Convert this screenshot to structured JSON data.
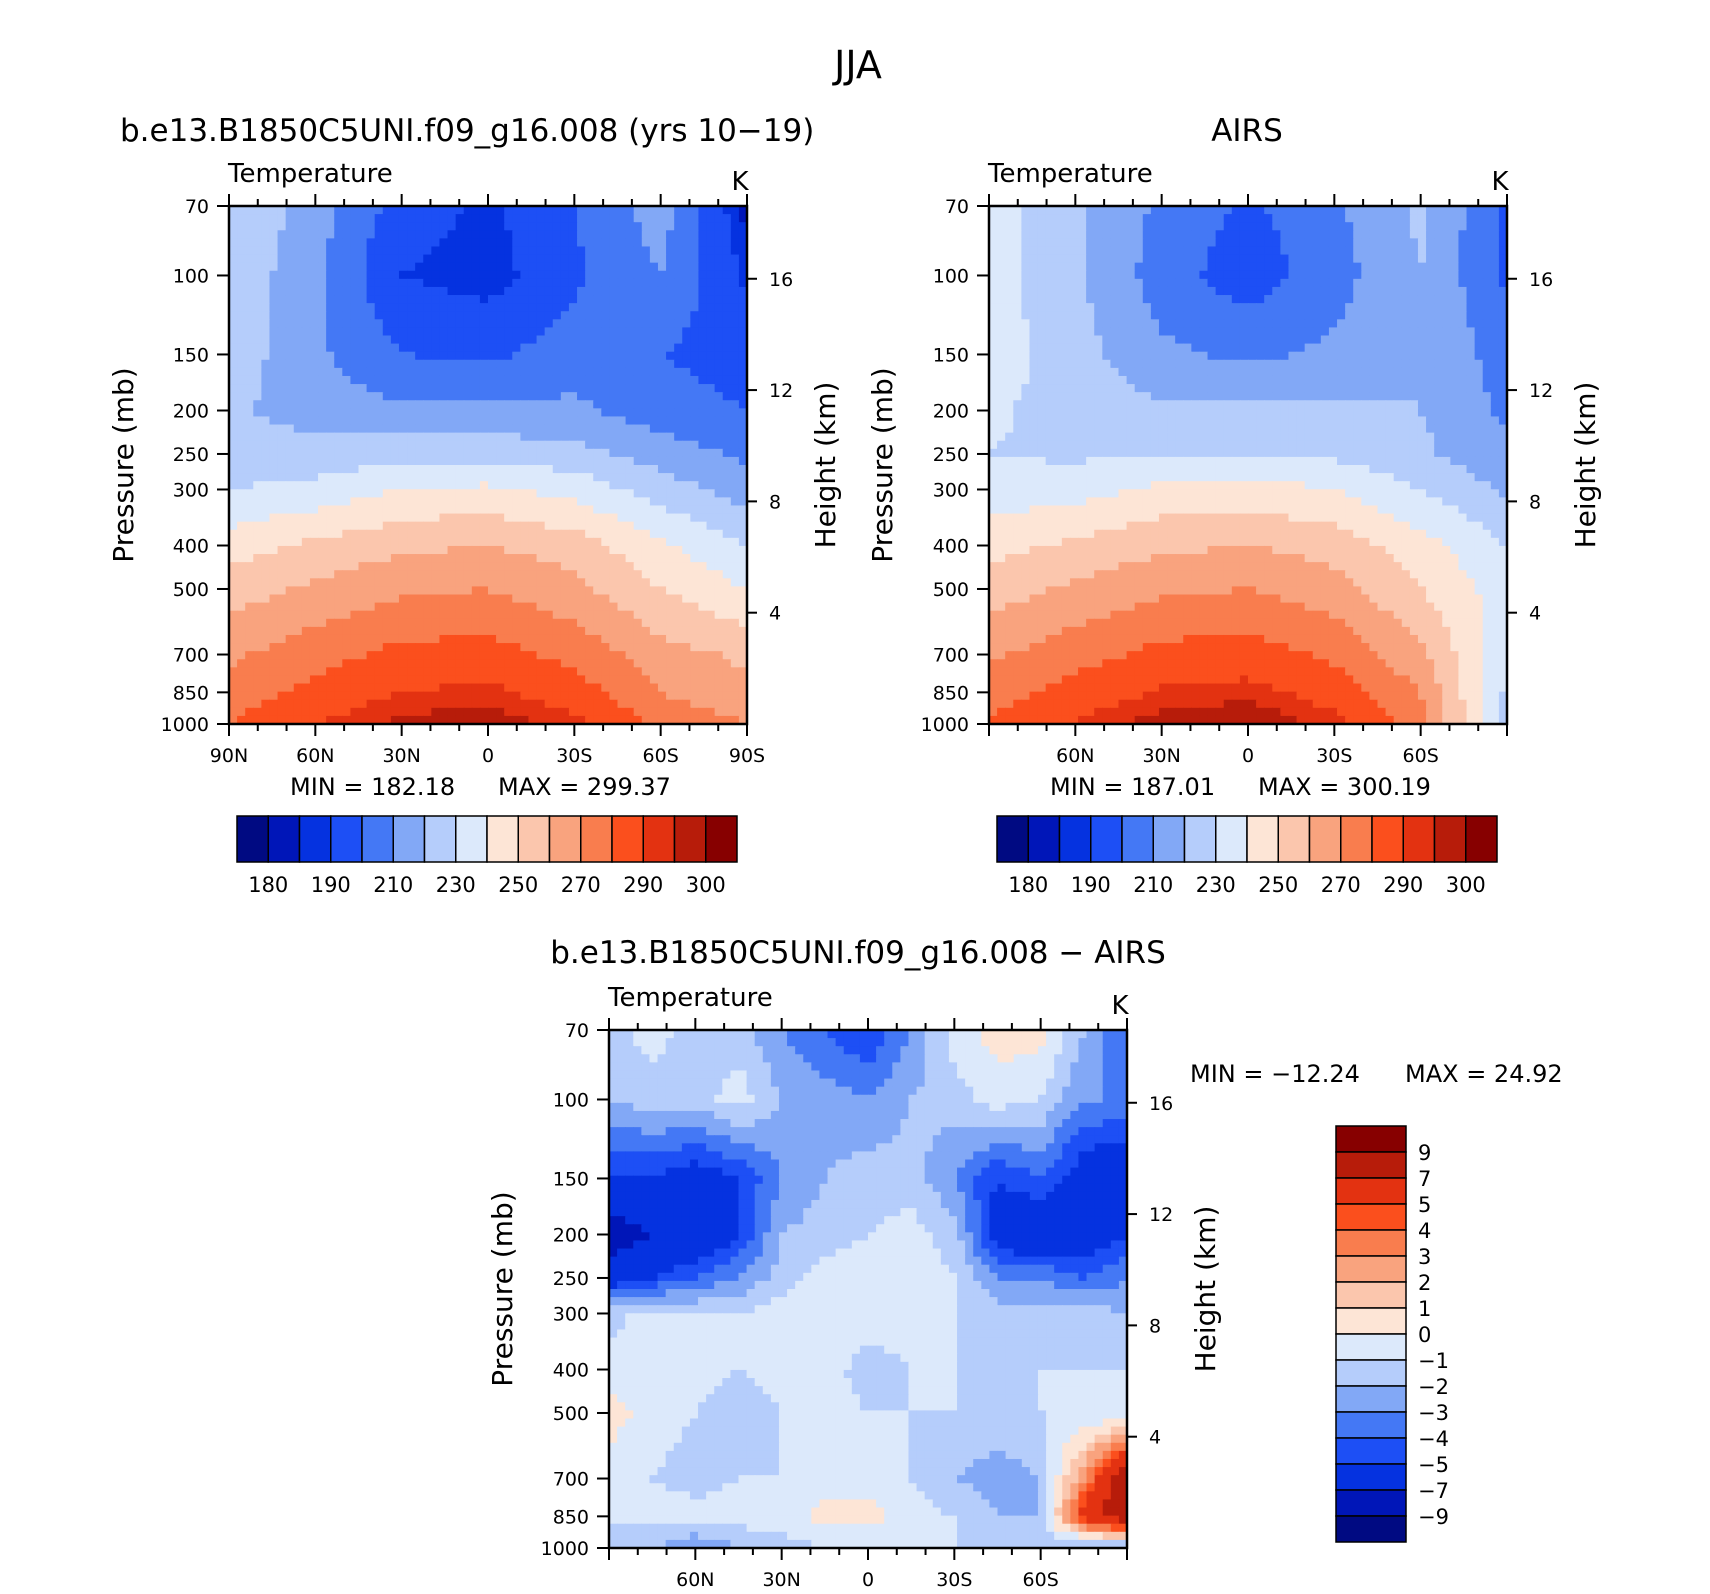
{
  "main_title": "JJA",
  "colors": {
    "abs_levels": [
      180,
      185,
      190,
      200,
      210,
      220,
      230,
      240,
      250,
      260,
      270,
      280,
      290,
      295,
      300
    ],
    "abs_palette": [
      "#000a82",
      "#0016b8",
      "#0532e0",
      "#1d4ff5",
      "#4478f5",
      "#82a8f6",
      "#b5cdfb",
      "#dce9fb",
      "#fde5d6",
      "#fbc6ad",
      "#f9a37e",
      "#f97d4e",
      "#fb4f1d",
      "#e33211",
      "#b71c0a",
      "#870000"
    ],
    "diff_palette": [
      "#000a82",
      "#0016b8",
      "#0532e0",
      "#1d4ff5",
      "#4478f5",
      "#82a8f6",
      "#b5cdfb",
      "#dce9fb",
      "#fde5d6",
      "#fbc6ad",
      "#f9a37e",
      "#f97d4e",
      "#fb4f1d",
      "#e33211",
      "#b71c0a",
      "#870000"
    ]
  },
  "chart_data": [
    {
      "type": "heatmap",
      "panel": "model",
      "title": "b.e13.B1850C5UNI.f09_g16.008 (yrs 10−19)",
      "left_string": "Temperature",
      "right_string": "K",
      "xlabel": "",
      "ylabel": "Pressure (mb)",
      "ylabel_right": "Height (km)",
      "x_ticks": [
        "90N",
        "60N",
        "30N",
        "0",
        "30S",
        "60S",
        "90S"
      ],
      "y_ticks": [
        "70",
        "100",
        "150",
        "200",
        "250",
        "300",
        "400",
        "500",
        "700",
        "850",
        "1000"
      ],
      "y_ticks_right": [
        "16",
        "12",
        "8",
        "4"
      ],
      "x": [
        90,
        60,
        30,
        0,
        -30,
        -60,
        -90
      ],
      "y": [
        70,
        100,
        150,
        200,
        250,
        300,
        400,
        500,
        700,
        850,
        1000
      ],
      "z": [
        [
          230,
          215,
          195,
          188,
          200,
          215,
          182
        ],
        [
          228,
          212,
          190,
          186,
          198,
          210,
          188
        ],
        [
          226,
          212,
          200,
          198,
          205,
          200,
          195
        ],
        [
          222,
          215,
          212,
          212,
          212,
          205,
          200
        ],
        [
          225,
          224,
          226,
          226,
          224,
          215,
          208
        ],
        [
          230,
          233,
          240,
          242,
          236,
          225,
          215
        ],
        [
          245,
          252,
          258,
          260,
          255,
          242,
          230
        ],
        [
          255,
          262,
          268,
          270,
          263,
          250,
          240
        ],
        [
          268,
          276,
          283,
          284,
          277,
          264,
          258
        ],
        [
          275,
          283,
          290,
          292,
          285,
          270,
          262
        ],
        [
          280,
          290,
          297,
          299,
          292,
          278,
          270
        ]
      ],
      "min_label": "MIN = 182.18",
      "max_label": "MAX = 299.37",
      "colorbar_labels": [
        "180",
        "190",
        "210",
        "230",
        "250",
        "270",
        "290",
        "300"
      ]
    },
    {
      "type": "heatmap",
      "panel": "obs",
      "title": "AIRS",
      "left_string": "Temperature",
      "right_string": "K",
      "xlabel": "",
      "ylabel": "Pressure (mb)",
      "ylabel_right": "Height (km)",
      "x_ticks": [
        "60N",
        "30N",
        "0",
        "30S",
        "60S"
      ],
      "y_ticks": [
        "70",
        "100",
        "150",
        "200",
        "250",
        "300",
        "400",
        "500",
        "700",
        "850",
        "1000"
      ],
      "y_ticks_right": [
        "16",
        "12",
        "8",
        "4"
      ],
      "x": [
        90,
        60,
        30,
        0,
        -30,
        -60,
        -90
      ],
      "y": [
        70,
        100,
        150,
        200,
        250,
        300,
        400,
        500,
        700,
        850,
        1000
      ],
      "z": [
        [
          235,
          222,
          208,
          198,
          208,
          222,
          198
        ],
        [
          234,
          222,
          205,
          194,
          206,
          220,
          198
        ],
        [
          236,
          224,
          212,
          208,
          212,
          220,
          205
        ],
        [
          232,
          225,
          222,
          222,
          222,
          220,
          208
        ],
        [
          230,
          228,
          230,
          230,
          228,
          222,
          212
        ],
        [
          234,
          236,
          242,
          244,
          240,
          230,
          218
        ],
        [
          246,
          252,
          258,
          260,
          256,
          244,
          230
        ],
        [
          255,
          262,
          268,
          270,
          264,
          250,
          235
        ],
        [
          268,
          276,
          283,
          285,
          278,
          262,
          232
        ],
        [
          276,
          284,
          291,
          293,
          286,
          270,
          228
        ],
        [
          281,
          291,
          298,
          300,
          293,
          275,
          225
        ]
      ],
      "min_label": "MIN = 187.01",
      "max_label": "MAX = 300.19",
      "colorbar_labels": [
        "180",
        "190",
        "210",
        "230",
        "250",
        "270",
        "290",
        "300"
      ]
    },
    {
      "type": "heatmap",
      "panel": "difference",
      "title": "b.e13.B1850C5UNI.f09_g16.008 − AIRS",
      "left_string": "Temperature",
      "right_string": "K",
      "xlabel": "",
      "ylabel": "Pressure (mb)",
      "ylabel_right": "Height (km)",
      "x_ticks": [
        "60N",
        "30N",
        "0",
        "30S",
        "60S"
      ],
      "y_ticks": [
        "70",
        "100",
        "150",
        "200",
        "250",
        "300",
        "400",
        "500",
        "700",
        "850",
        "1000"
      ],
      "y_ticks_right": [
        "16",
        "12",
        "8",
        "4"
      ],
      "x": [
        90,
        75,
        60,
        45,
        30,
        15,
        0,
        -15,
        -30,
        -45,
        -60,
        -75,
        -90
      ],
      "y": [
        70,
        100,
        150,
        200,
        250,
        300,
        400,
        500,
        700,
        850,
        1000
      ],
      "z": [
        [
          -1.5,
          -0.5,
          -1.5,
          -1.5,
          -3,
          -4,
          -5,
          -3,
          -0.5,
          0.5,
          0.5,
          -2,
          -4
        ],
        [
          -2,
          -1.5,
          -1.5,
          -0.5,
          -2,
          -2.5,
          -3,
          -2,
          -1.5,
          -0.5,
          -1,
          -3,
          -3
        ],
        [
          -5,
          -5,
          -6,
          -5,
          -3,
          -2,
          -1.5,
          -1.5,
          -3,
          -5,
          -4,
          -6,
          -7
        ],
        [
          -8,
          -7,
          -7,
          -5,
          -2,
          -1.5,
          -1,
          -0.5,
          -1.5,
          -6,
          -7,
          -6,
          -5
        ],
        [
          -6,
          -5,
          -4,
          -3,
          -1.5,
          -0.5,
          -0.5,
          -0.5,
          -1,
          -3,
          -3,
          -4,
          -3
        ],
        [
          -1.5,
          -0.5,
          -1,
          -1,
          -0.5,
          -0.5,
          -0.5,
          -0.5,
          -1,
          -1.5,
          -1.5,
          -1.5,
          -2
        ],
        [
          -0.5,
          -0.5,
          -0.5,
          -1,
          -0.5,
          -0.5,
          -1.5,
          -1,
          -1,
          -1,
          -1,
          -1,
          -1
        ],
        [
          0.5,
          -0.5,
          -1,
          -1.5,
          -1,
          -0.5,
          -1,
          -1,
          -1,
          -1.5,
          -1,
          -1,
          -1
        ],
        [
          -0.5,
          -1,
          -1.5,
          -1,
          -1,
          -0.5,
          -0.5,
          -1,
          -2,
          -2.5,
          -2,
          3,
          9
        ],
        [
          -0.5,
          -0.5,
          -0.5,
          -0.5,
          -0.5,
          0.5,
          0.5,
          -0.5,
          -1,
          -2,
          -2,
          6,
          9
        ],
        [
          -2,
          -2,
          -3,
          -2,
          -1.5,
          -1,
          -1,
          -1,
          -1,
          -1,
          -1.5,
          -3,
          -3
        ]
      ],
      "min_label": "MIN = −12.24",
      "max_label": "MAX = 24.92",
      "levels": [
        -9,
        -7,
        -5,
        -4,
        -3,
        -2,
        -1,
        0,
        1,
        2,
        3,
        4,
        5,
        7,
        9
      ],
      "colorbar_labels": [
        "9",
        "7",
        "5",
        "4",
        "3",
        "2",
        "1",
        "0",
        "−1",
        "−2",
        "−3",
        "−4",
        "−5",
        "−7",
        "−9"
      ]
    }
  ]
}
